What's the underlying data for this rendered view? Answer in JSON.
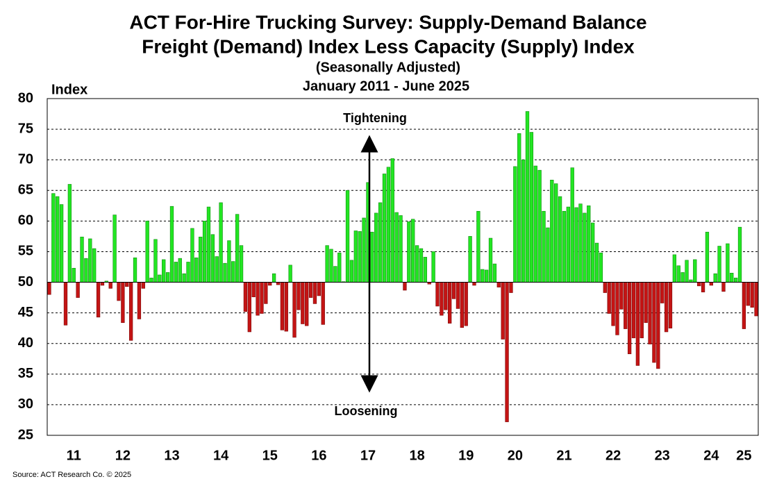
{
  "chart_data": {
    "type": "bar",
    "title": [
      "ACT For-Hire Trucking Survey: Supply-Demand Balance",
      "Freight (Demand) Index Less Capacity (Supply) Index"
    ],
    "subtitle": [
      "(Seasonally Adjusted)",
      "January 2011 - June 2025"
    ],
    "y_label": "Index",
    "source": "Source: ACT Research Co. © 2025",
    "annotations": [
      "Tightening",
      "Loosening"
    ],
    "baseline": 50,
    "colors": {
      "above": "#22e622",
      "below": "#c41414"
    },
    "ylim": [
      25,
      80
    ],
    "yticks": [
      25,
      30,
      35,
      40,
      45,
      50,
      55,
      60,
      65,
      70,
      75,
      80
    ],
    "grid": true,
    "categories": [
      null,
      null,
      null,
      null,
      null,
      null,
      "11",
      null,
      null,
      null,
      null,
      null,
      null,
      null,
      null,
      null,
      null,
      null,
      "12",
      null,
      null,
      null,
      null,
      null,
      null,
      null,
      null,
      null,
      null,
      null,
      "13",
      null,
      null,
      null,
      null,
      null,
      null,
      null,
      null,
      null,
      null,
      null,
      "14",
      null,
      null,
      null,
      null,
      null,
      null,
      null,
      null,
      null,
      null,
      null,
      "15",
      null,
      null,
      null,
      null,
      null,
      null,
      null,
      null,
      null,
      null,
      null,
      "16",
      null,
      null,
      null,
      null,
      null,
      null,
      null,
      null,
      null,
      null,
      null,
      "17",
      null,
      null,
      null,
      null,
      null,
      null,
      null,
      null,
      null,
      null,
      null,
      "18",
      null,
      null,
      null,
      null,
      null,
      null,
      null,
      null,
      null,
      null,
      null,
      "19",
      null,
      null,
      null,
      null,
      null,
      null,
      null,
      null,
      null,
      null,
      null,
      "20",
      null,
      null,
      null,
      null,
      null,
      null,
      null,
      null,
      null,
      null,
      null,
      "21",
      null,
      null,
      null,
      null,
      null,
      null,
      null,
      null,
      null,
      null,
      null,
      "22",
      null,
      null,
      null,
      null,
      null,
      null,
      null,
      null,
      null,
      null,
      null,
      "23",
      null,
      null,
      null,
      null,
      null,
      null,
      null,
      null,
      null,
      null,
      null,
      "24",
      null,
      null,
      null,
      null,
      null,
      null,
      null,
      "25",
      null,
      null,
      null
    ],
    "values": [
      48,
      64.5,
      64,
      62.7,
      43,
      66,
      52.3,
      47.5,
      57.4,
      53.9,
      57.1,
      55.5,
      44.3,
      49.5,
      50.2,
      49,
      61,
      47,
      43.4,
      49.3,
      40.5,
      54,
      44,
      49,
      60,
      50.7,
      57,
      51.2,
      53.7,
      51.6,
      62.4,
      53.3,
      53.9,
      51.4,
      53.3,
      58.8,
      54,
      57.4,
      60,
      62.3,
      57.8,
      54.2,
      63,
      53.1,
      56.8,
      53.4,
      61.1,
      56,
      45.2,
      41.9,
      47.6,
      44.6,
      44.9,
      46.5,
      49.5,
      51.4,
      49.6,
      42.2,
      42,
      52.8,
      41,
      45.5,
      43.2,
      42.9,
      47.5,
      46.5,
      47.8,
      43.1,
      56,
      55.4,
      52.6,
      54.8,
      50.1,
      65,
      53.6,
      58.4,
      58.3,
      60.5,
      66.3,
      58.2,
      61.3,
      63,
      67.7,
      68.8,
      70.2,
      61.4,
      60.9,
      48.7,
      59.9,
      60.3,
      56,
      55.5,
      54.1,
      49.7,
      55,
      46.1,
      44.6,
      45.5,
      43.3,
      47.3,
      45.7,
      42.6,
      42.9,
      57.5,
      49.5,
      61.6,
      52.1,
      52,
      57.2,
      53,
      49.2,
      40.7,
      27.2,
      48.3,
      68.9,
      74.3,
      70,
      77.9,
      74.5,
      69,
      68.3,
      61.6,
      58.9,
      66.7,
      66.1,
      64,
      61.6,
      62.3,
      68.7,
      62.2,
      62.8,
      61.3,
      62.5,
      59.7,
      56.4,
      54.8,
      48.3,
      44.9,
      42.9,
      41.4,
      45.6,
      42.4,
      38.3,
      40.9,
      36.4,
      40.9,
      43.4,
      39.9,
      36.9,
      35.9,
      46.6,
      41.9,
      42.5,
      54.5,
      52.7,
      51.6,
      53.6,
      50.4,
      53.7,
      49.4,
      48.4,
      58.2,
      49.5,
      51.4,
      55.9,
      48.5,
      56.3,
      51.5,
      50.7,
      59,
      42.4,
      46.2,
      45.9,
      44.5
    ]
  }
}
